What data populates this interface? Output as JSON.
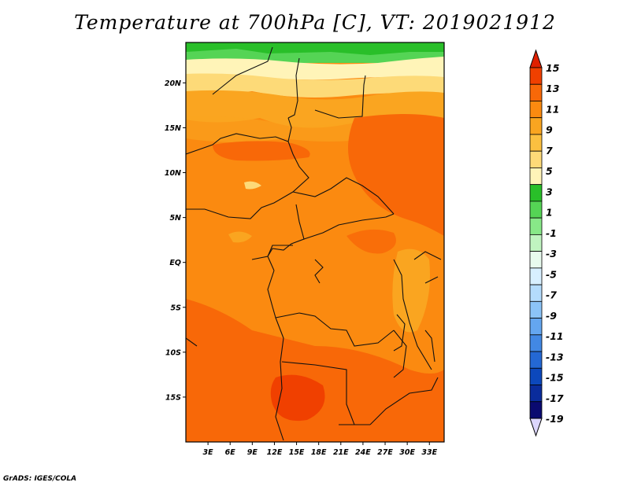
{
  "title": "Temperature at 700hPa [C], VT: 2019021912",
  "credit": "GrADS: IGES/COLA",
  "chart_data": {
    "type": "heatmap",
    "variable": "Temperature at 700hPa",
    "units": "C",
    "valid_time": "2019021912",
    "lon_range": [
      0,
      35
    ],
    "lat_range": [
      -20,
      24.5
    ],
    "lon_tick_labels": [
      "3E",
      "6E",
      "9E",
      "12E",
      "15E",
      "18E",
      "21E",
      "24E",
      "27E",
      "30E",
      "33E"
    ],
    "lon_tick_values": [
      3,
      6,
      9,
      12,
      15,
      18,
      21,
      24,
      27,
      30,
      33
    ],
    "lat_tick_labels": [
      "20N",
      "15N",
      "10N",
      "5N",
      "EQ",
      "5S",
      "10S",
      "15S"
    ],
    "lat_tick_values": [
      20,
      15,
      10,
      5,
      0,
      -5,
      -10,
      -15
    ],
    "colorbar": {
      "labels": [
        "15",
        "13",
        "11",
        "9",
        "7",
        "5",
        "3",
        "1",
        "-1",
        "-3",
        "-5",
        "-7",
        "-9",
        "-11",
        "-13",
        "-15",
        "-17",
        "-19"
      ],
      "colors": [
        "#e02000",
        "#f04000",
        "#f86808",
        "#fb8a10",
        "#faa520",
        "#fcc040",
        "#fdda78",
        "#fff4b8",
        "#29bf29",
        "#55d455",
        "#88e888",
        "#c0f4c0",
        "#e8fbee",
        "#d8f0ff",
        "#b4dcfc",
        "#8cc4f8",
        "#64a6f0",
        "#4288e4",
        "#2468d4",
        "#0c48bc",
        "#0a2c9c",
        "#0a0a70",
        "#dcd6fc"
      ],
      "extend": "both"
    },
    "fields": [
      {
        "name": "saharan-green-band",
        "value": 1,
        "lat_range": [
          23,
          24.5
        ]
      },
      {
        "name": "yellow-band",
        "value": 5,
        "lat_range": [
          20,
          23
        ]
      },
      {
        "name": "sahel-band",
        "value": 9,
        "lat_range": [
          14,
          20
        ]
      },
      {
        "name": "central-africa",
        "value": 10,
        "lat_range": [
          -10,
          14
        ]
      },
      {
        "name": "east-sudan-warm-region",
        "value": 12,
        "lat_range": [
          5,
          16
        ]
      },
      {
        "name": "southern-africa",
        "value": 12,
        "lat_range": [
          -20,
          -10
        ]
      }
    ]
  }
}
